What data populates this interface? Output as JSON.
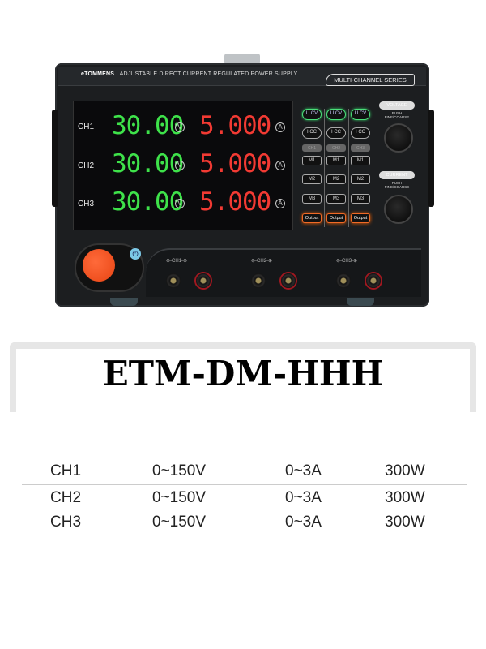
{
  "device": {
    "brand": "eTOMMENS",
    "tagline": "ADJUSTABLE DIRECT CURRENT REGULATED POWER SUPPLY",
    "series": "MULTI-CHANNEL SERIES",
    "channels": [
      {
        "label": "CH1",
        "voltage": "30.00",
        "current": "5.000"
      },
      {
        "label": "CH2",
        "voltage": "30.00",
        "current": "5.000"
      },
      {
        "label": "CH3",
        "voltage": "30.00",
        "current": "5.000"
      }
    ],
    "voltage_unit": "V",
    "current_unit": "A",
    "buttons": {
      "cv": "U CV",
      "cc": "I CC",
      "ch": [
        "CH1",
        "CH2",
        "CH3"
      ],
      "m1": "M1",
      "m2": "M2",
      "m3": "M3",
      "output": "Output"
    },
    "knobs": {
      "voltage_label": "VOLTAGE",
      "current_label": "CURRENT",
      "push": "PUSH",
      "fine": "FINE/COARSE"
    },
    "terminals": [
      "CH1",
      "CH2",
      "CH3"
    ],
    "colors": {
      "voltage": "#3ee24a",
      "current": "#f23a33",
      "power_switch": "#e84413"
    }
  },
  "model": "ETM-DM-HHH",
  "specs": [
    [
      "CH1",
      "0~150V",
      "0~3A",
      "300W"
    ],
    [
      "CH2",
      "0~150V",
      "0~3A",
      "300W"
    ],
    [
      "CH3",
      "0~150V",
      "0~3A",
      "300W"
    ]
  ]
}
